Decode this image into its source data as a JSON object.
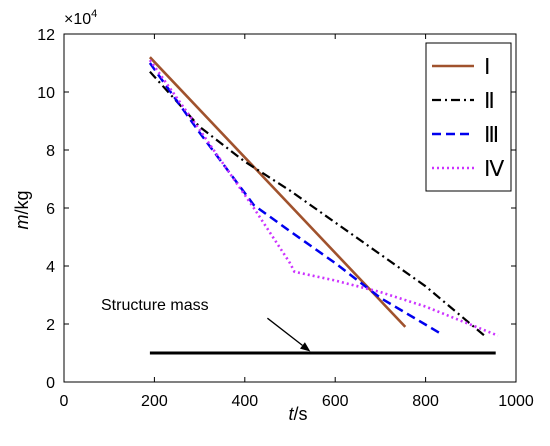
{
  "chart_data": {
    "type": "line",
    "x_axis": {
      "label_italic": "t",
      "label_unit": "/s",
      "range": [
        0,
        1000
      ],
      "ticks": [
        0,
        200,
        400,
        600,
        800,
        1000
      ],
      "tick_labels": [
        "0",
        "200",
        "400",
        "600",
        "800",
        "1000"
      ]
    },
    "y_axis": {
      "label_italic": "m",
      "label_unit": "/kg",
      "range": [
        0,
        120000
      ],
      "ticks": [
        0,
        20000,
        40000,
        60000,
        80000,
        100000,
        120000
      ],
      "tick_labels": [
        "0",
        "2",
        "4",
        "6",
        "8",
        "10",
        "12"
      ],
      "multiplier_text": "×10",
      "multiplier_exponent": "4"
    },
    "grid": false,
    "legend_position": "top-right",
    "series": [
      {
        "name": "I",
        "color": "#a0522d",
        "dash": "solid",
        "x": [
          190,
          755
        ],
        "y": [
          112000,
          19000
        ]
      },
      {
        "name": "II",
        "color": "#000000",
        "dash": "dashdot",
        "x": [
          190,
          300,
          400,
          500,
          600,
          700,
          800,
          930
        ],
        "y": [
          107000,
          88000,
          76000,
          66000,
          55000,
          44000,
          33000,
          16000
        ]
      },
      {
        "name": "III",
        "color": "#0000ee",
        "dash": "dashed",
        "x": [
          190,
          300,
          420,
          500,
          600,
          700,
          830
        ],
        "y": [
          110000,
          86000,
          61000,
          52000,
          41000,
          29000,
          17000
        ]
      },
      {
        "name": "IV",
        "color": "#cc33ff",
        "dash": "dotted",
        "x": [
          190,
          300,
          420,
          500,
          510,
          600,
          700,
          800,
          960
        ],
        "y": [
          111000,
          87000,
          60000,
          41000,
          38000,
          35000,
          31000,
          26000,
          16000
        ]
      },
      {
        "name": "Structure mass",
        "color": "#000000",
        "dash": "solid-thick",
        "x": [
          190,
          955
        ],
        "y": [
          10000,
          10000
        ]
      }
    ],
    "annotations": [
      {
        "text": "Structure mass",
        "arrow_from": [
          450,
          22000
        ],
        "arrow_to": [
          545,
          10500
        ]
      }
    ],
    "legend_labels": [
      "Ⅰ",
      "Ⅱ",
      "Ⅲ",
      "Ⅳ"
    ]
  }
}
